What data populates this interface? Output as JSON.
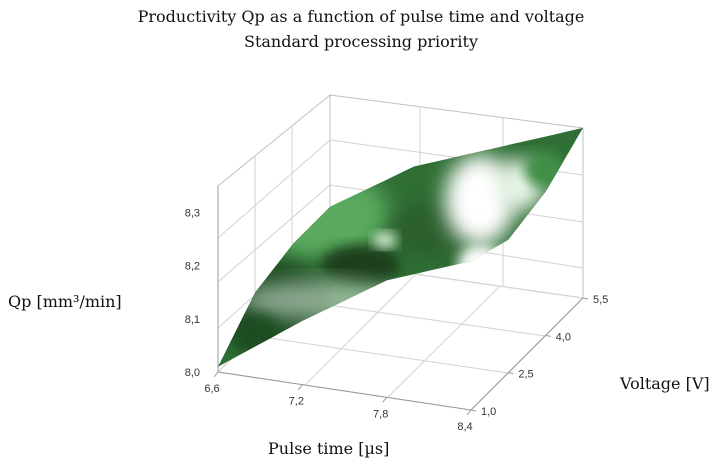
{
  "chart_data": {
    "type": "surface3d",
    "title": "Productivity Qp as a function of pulse time and voltage",
    "subtitle": "Standard processing priority",
    "xlabel": "Pulse time [µs]",
    "ylabel": "Voltage [V]",
    "zlabel": "Qp [mm³/min]",
    "x_ticks": [
      "6,6",
      "7,2",
      "7,8",
      "8,4"
    ],
    "y_ticks": [
      "1,0",
      "2,5",
      "4,0",
      "5,5"
    ],
    "z_ticks": [
      "8,0",
      "8,1",
      "8,2",
      "8,3"
    ],
    "xlim": [
      6.6,
      8.4
    ],
    "ylim": [
      1.0,
      5.5
    ],
    "zlim": [
      8.0,
      8.35
    ],
    "grid": true,
    "x": [
      6.6,
      7.2,
      7.8,
      8.4
    ],
    "y": [
      1.0,
      2.5,
      4.0,
      5.5
    ],
    "z": [
      [
        8.01,
        8.12,
        8.22,
        8.28
      ],
      [
        8.08,
        8.14,
        8.18,
        8.25
      ],
      [
        8.1,
        8.16,
        8.2,
        8.27
      ],
      [
        8.1,
        8.2,
        8.26,
        8.32
      ]
    ],
    "colors": {
      "low": "#1e4a22",
      "mid": "#3a8a43",
      "high": "#ffffff"
    }
  }
}
